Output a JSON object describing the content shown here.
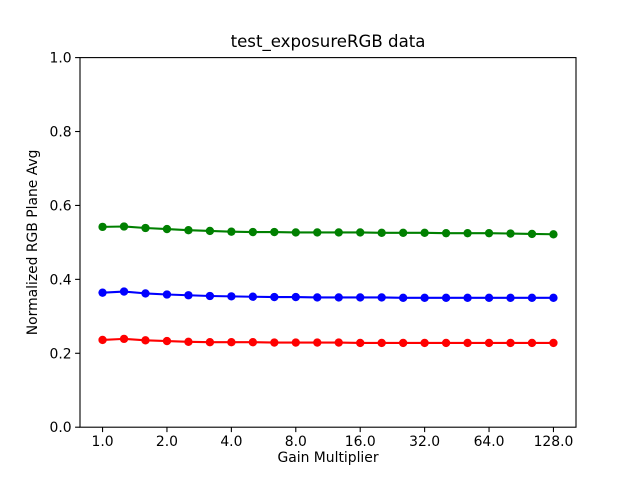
{
  "figure": {
    "background_color": "#ffffff"
  },
  "chart_data": {
    "type": "line",
    "title": "test_exposureRGB data",
    "xlabel": "Gain Multiplier",
    "ylabel": "Normalized RGB Plane Avg",
    "x_scale": "log2",
    "xlim_log2": [
      -0.35,
      7.35
    ],
    "ylim": [
      0.0,
      1.0
    ],
    "grid": false,
    "legend": null,
    "x_ticks": [
      1.0,
      2.0,
      4.0,
      8.0,
      16.0,
      32.0,
      64.0,
      128.0
    ],
    "x_tick_labels": [
      "1.0",
      "2.0",
      "4.0",
      "8.0",
      "16.0",
      "32.0",
      "64.0",
      "128.0"
    ],
    "y_ticks": [
      0.0,
      0.2,
      0.4,
      0.6,
      0.8,
      1.0
    ],
    "y_tick_labels": [
      "0.0",
      "0.2",
      "0.4",
      "0.6",
      "0.8",
      "1.0"
    ],
    "x": [
      1.0,
      1.26,
      1.587,
      2.0,
      2.52,
      3.175,
      4.0,
      5.04,
      6.35,
      8.0,
      10.079,
      12.699,
      16.0,
      20.159,
      25.398,
      32.0,
      40.317,
      50.797,
      64.0,
      80.635,
      101.594,
      128.0
    ],
    "series": [
      {
        "name": "red",
        "color": "#ff0000",
        "marker": "circle",
        "values": [
          0.236,
          0.239,
          0.235,
          0.233,
          0.231,
          0.23,
          0.23,
          0.23,
          0.229,
          0.229,
          0.229,
          0.229,
          0.228,
          0.228,
          0.228,
          0.228,
          0.228,
          0.228,
          0.228,
          0.228,
          0.228,
          0.228
        ]
      },
      {
        "name": "green",
        "color": "#008000",
        "marker": "circle",
        "values": [
          0.542,
          0.543,
          0.539,
          0.536,
          0.533,
          0.531,
          0.529,
          0.528,
          0.528,
          0.527,
          0.527,
          0.527,
          0.527,
          0.526,
          0.526,
          0.526,
          0.525,
          0.525,
          0.525,
          0.524,
          0.523,
          0.522
        ]
      },
      {
        "name": "blue",
        "color": "#0000ff",
        "marker": "circle",
        "values": [
          0.364,
          0.367,
          0.362,
          0.359,
          0.357,
          0.355,
          0.354,
          0.353,
          0.352,
          0.352,
          0.351,
          0.351,
          0.351,
          0.351,
          0.35,
          0.35,
          0.35,
          0.35,
          0.35,
          0.35,
          0.35,
          0.35
        ]
      }
    ]
  }
}
